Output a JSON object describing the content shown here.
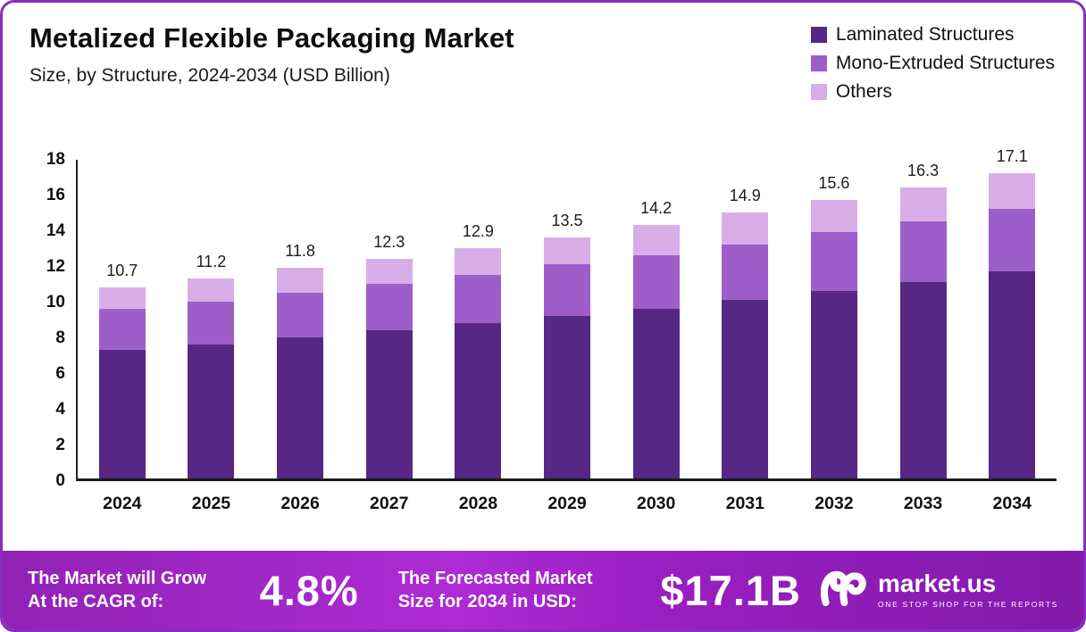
{
  "header": {
    "title": "Metalized Flexible Packaging Market",
    "subtitle": "Size, by Structure, 2024-2034 (USD Billion)"
  },
  "chart_data": {
    "type": "bar",
    "stacked": true,
    "categories": [
      "2024",
      "2025",
      "2026",
      "2027",
      "2028",
      "2029",
      "2030",
      "2031",
      "2032",
      "2033",
      "2034"
    ],
    "series": [
      {
        "name": "Laminated Structures",
        "color": "#562784",
        "values": [
          7.2,
          7.5,
          7.9,
          8.3,
          8.7,
          9.1,
          9.5,
          10.0,
          10.5,
          11.0,
          11.6
        ]
      },
      {
        "name": "Mono-Extruded Structures",
        "color": "#9d5ec9",
        "values": [
          2.3,
          2.4,
          2.5,
          2.6,
          2.7,
          2.9,
          3.0,
          3.1,
          3.3,
          3.4,
          3.5
        ]
      },
      {
        "name": "Others",
        "color": "#d9aee8",
        "values": [
          1.2,
          1.3,
          1.4,
          1.4,
          1.5,
          1.5,
          1.7,
          1.8,
          1.8,
          1.9,
          2.0
        ]
      }
    ],
    "totals": [
      10.7,
      11.2,
      11.8,
      12.3,
      12.9,
      13.5,
      14.2,
      14.9,
      15.6,
      16.3,
      17.1
    ],
    "title": "Metalized Flexible Packaging Market Size, by Structure, 2024-2034 (USD Billion)",
    "xlabel": "",
    "ylabel": "",
    "ylim": [
      0,
      18
    ],
    "yticks": [
      18,
      16,
      14,
      12,
      10,
      8,
      6,
      4,
      2,
      0
    ],
    "grid": false,
    "legend_position": "top-right"
  },
  "banner": {
    "cagr_label": "The Market will Grow At the CAGR of:",
    "cagr_value": "4.8%",
    "forecast_label": "The Forecasted Market Size for 2034 in USD:",
    "forecast_value": "$17.1B",
    "brand": "market.us",
    "brand_tagline": "ONE STOP SHOP FOR THE REPORTS"
  }
}
